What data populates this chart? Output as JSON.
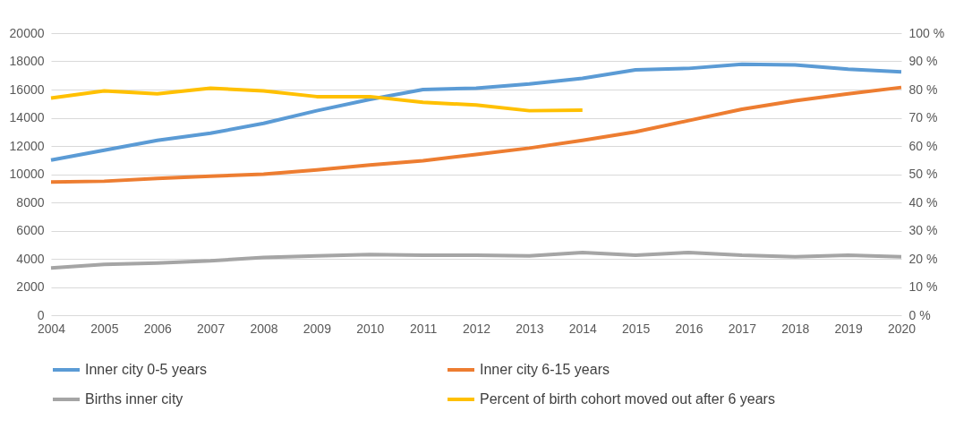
{
  "chart_data": {
    "type": "line",
    "categories": [
      "2004",
      "2005",
      "2006",
      "2007",
      "2008",
      "2009",
      "2010",
      "2011",
      "2012",
      "2013",
      "2014",
      "2015",
      "2016",
      "2017",
      "2018",
      "2019",
      "2020"
    ],
    "series": [
      {
        "name": "Inner city 0-5 years",
        "color": "#5b9bd5",
        "values": [
          11000,
          11700,
          12400,
          12900,
          13600,
          14500,
          15300,
          16000,
          16100,
          16400,
          16800,
          17400,
          17500,
          17800,
          17750,
          17450,
          17250
        ]
      },
      {
        "name": "Inner city 6-15 years",
        "color": "#ed7d31",
        "values": [
          9450,
          9500,
          9700,
          9850,
          10000,
          10300,
          10650,
          10950,
          11400,
          11850,
          12400,
          13000,
          13800,
          14600,
          15200,
          15700,
          16150
        ]
      },
      {
        "name": "Births inner city",
        "color": "#a5a5a5",
        "values": [
          3350,
          3600,
          3700,
          3850,
          4100,
          4200,
          4300,
          4250,
          4250,
          4200,
          4450,
          4250,
          4450,
          4250,
          4150,
          4250,
          4150
        ]
      },
      {
        "name": "Percent of birth cohort moved out after 6 years",
        "color": "#ffc000",
        "axis": "y2",
        "values": [
          77,
          79.5,
          78.5,
          80.5,
          79.5,
          77.5,
          77.5,
          75.5,
          74.5,
          72.5,
          72.7,
          null,
          null,
          null,
          null,
          null,
          null
        ]
      }
    ],
    "ylim": [
      0,
      20000
    ],
    "yticks": [
      0,
      2000,
      4000,
      6000,
      8000,
      10000,
      12000,
      14000,
      16000,
      18000,
      20000
    ],
    "y2lim": [
      0,
      100
    ],
    "y2ticks": [
      {
        "value": 0,
        "label": "0 %"
      },
      {
        "value": 10,
        "label": "10 %"
      },
      {
        "value": 20,
        "label": "20 %"
      },
      {
        "value": 30,
        "label": "30 %"
      },
      {
        "value": 40,
        "label": "40 %"
      },
      {
        "value": 50,
        "label": "50 %"
      },
      {
        "value": 60,
        "label": "60 %"
      },
      {
        "value": 70,
        "label": "70 %"
      },
      {
        "value": 80,
        "label": "80 %"
      },
      {
        "value": 90,
        "label": "90 %"
      },
      {
        "value": 100,
        "label": "100 %"
      }
    ],
    "grid": "y",
    "legend": "bottom",
    "line_style": "solid",
    "marker": "none"
  }
}
